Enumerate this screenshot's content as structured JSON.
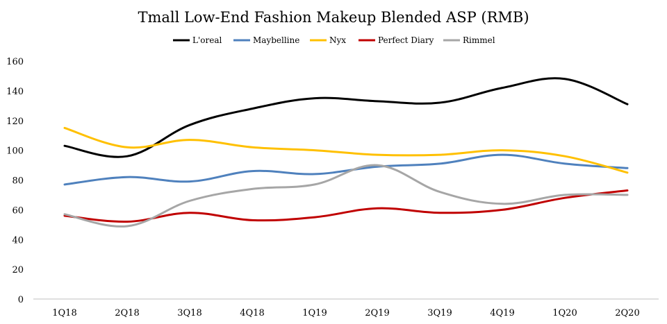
{
  "chart_data": {
    "type": "line",
    "title": "Tmall Low-End Fashion Makeup Blended ASP (RMB)",
    "xlabel": "",
    "ylabel": "",
    "categories": [
      "1Q18",
      "2Q18",
      "3Q18",
      "4Q18",
      "1Q19",
      "2Q19",
      "3Q19",
      "4Q19",
      "1Q20",
      "2Q20"
    ],
    "ylim": [
      0,
      160
    ],
    "yticks": [
      0,
      20,
      40,
      60,
      80,
      100,
      120,
      140,
      160
    ],
    "grid": false,
    "legend_position": "top",
    "series": [
      {
        "name": "L'oreal",
        "color": "#000000",
        "values": [
          103,
          96,
          117,
          128,
          135,
          133,
          132,
          142,
          148,
          131
        ]
      },
      {
        "name": "Maybelline",
        "color": "#4F81BD",
        "values": [
          77,
          82,
          79,
          86,
          84,
          89,
          91,
          97,
          91,
          88
        ]
      },
      {
        "name": "Nyx",
        "color": "#FFC000",
        "values": [
          115,
          102,
          107,
          102,
          100,
          97,
          97,
          100,
          96,
          85
        ]
      },
      {
        "name": "Perfect Diary",
        "color": "#C00000",
        "values": [
          56,
          52,
          58,
          53,
          55,
          61,
          58,
          60,
          68,
          73
        ]
      },
      {
        "name": "Rimmel",
        "color": "#A6A6A6",
        "values": [
          57,
          49,
          66,
          74,
          77,
          90,
          72,
          64,
          70,
          70
        ]
      }
    ]
  }
}
